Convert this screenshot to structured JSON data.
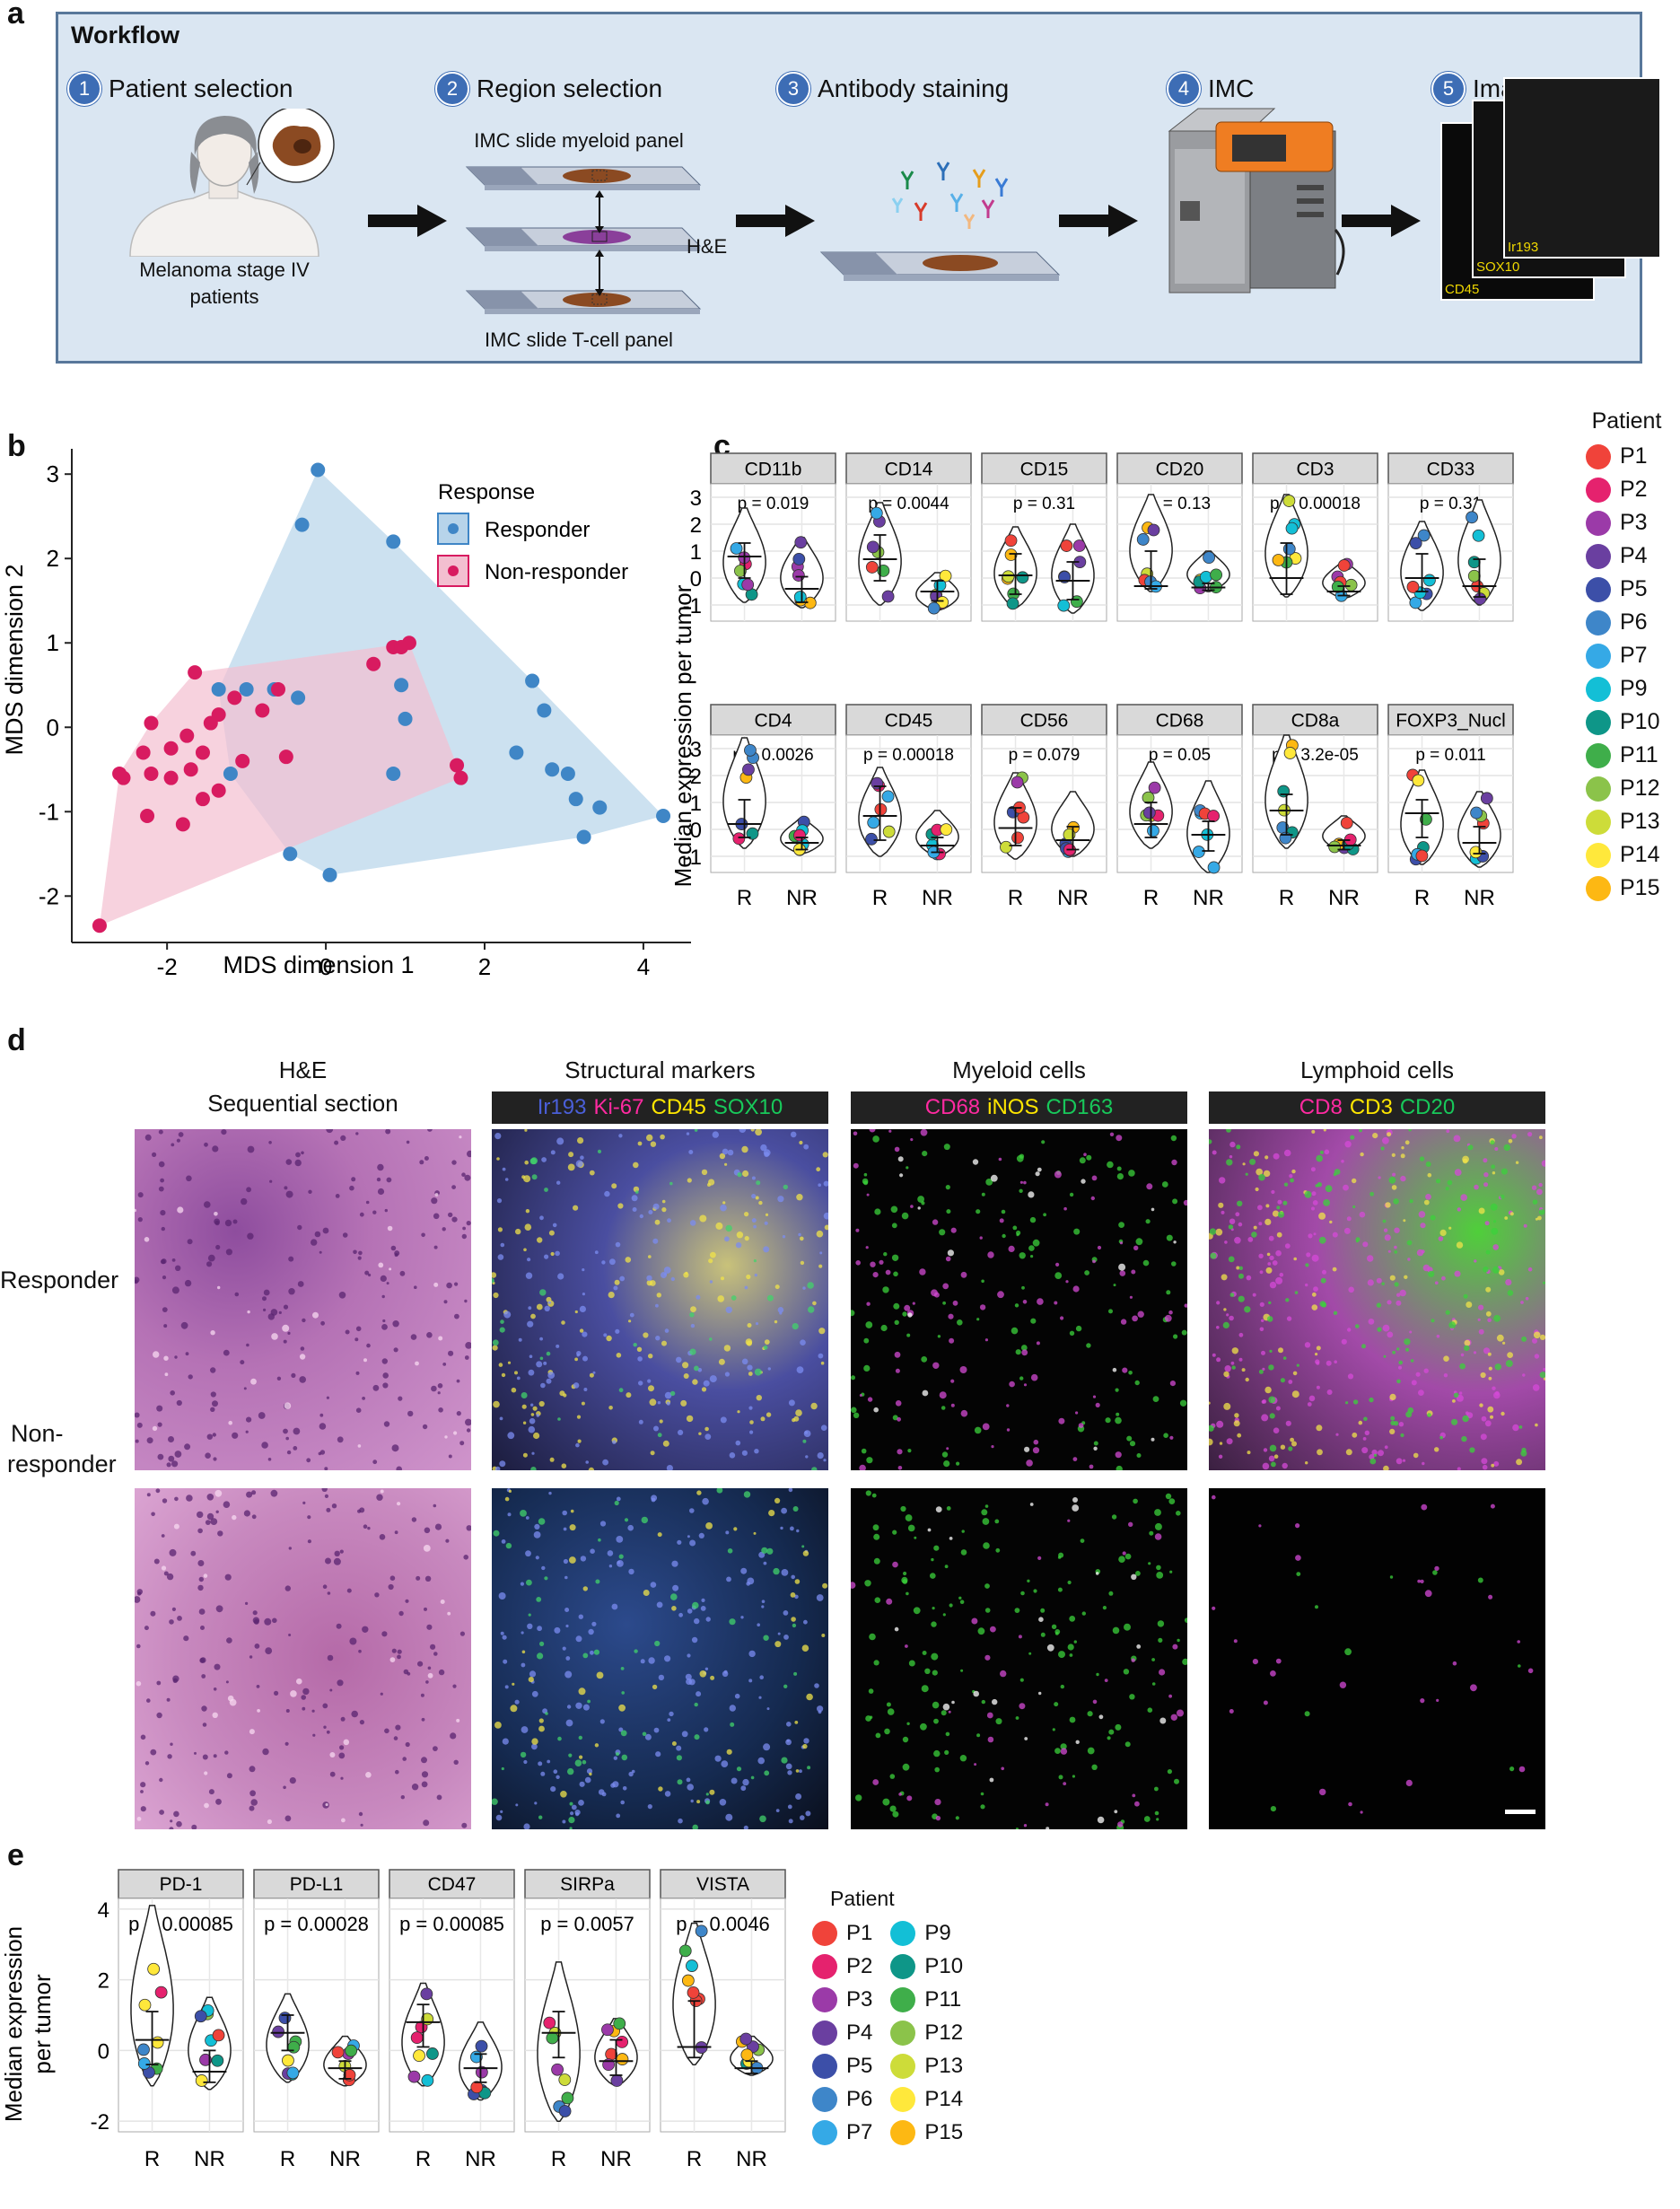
{
  "panel_labels": {
    "a": "a",
    "b": "b",
    "c": "c",
    "d": "d",
    "e": "e"
  },
  "workflow": {
    "title": "Workflow",
    "steps": [
      {
        "num": "1",
        "label": "Patient selection"
      },
      {
        "num": "2",
        "label": "Region selection"
      },
      {
        "num": "3",
        "label": "Antibody staining"
      },
      {
        "num": "4",
        "label": "IMC"
      },
      {
        "num": "5",
        "label": "Image stack"
      }
    ],
    "patient_caption_1": "Melanoma stage IV",
    "patient_caption_2": "patients",
    "slide_top": "IMC slide myeloid panel",
    "slide_mid": "H&E",
    "slide_bottom": "IMC slide T-cell panel",
    "stack_labels": [
      "Ir193",
      "SOX10",
      "CD45"
    ]
  },
  "colors": {
    "responder": "#3f86c6",
    "non_responder": "#d81b60",
    "responder_fill": "#b7d4ea",
    "non_responder_fill": "#f3bfd0",
    "workflow_bg": "#dae6f2",
    "workflow_border": "#58779a",
    "step_badge": "#3d6db5",
    "strip_bg": "#d9d9d9",
    "dark_strip": "#222222"
  },
  "patients": {
    "title": "Patient",
    "items": [
      {
        "label": "P1",
        "color": "#f0433a"
      },
      {
        "label": "P2",
        "color": "#e5226e"
      },
      {
        "label": "P3",
        "color": "#9b3aa8"
      },
      {
        "label": "P4",
        "color": "#6a3fa0"
      },
      {
        "label": "P5",
        "color": "#3c4fa8"
      },
      {
        "label": "P6",
        "color": "#3e86c9"
      },
      {
        "label": "P7",
        "color": "#35a9e6"
      },
      {
        "label": "P9",
        "color": "#13bfd6"
      },
      {
        "label": "P10",
        "color": "#0e9688"
      },
      {
        "label": "P11",
        "color": "#3fae4a"
      },
      {
        "label": "P12",
        "color": "#8bc34a"
      },
      {
        "label": "P13",
        "color": "#cddc39"
      },
      {
        "label": "P14",
        "color": "#ffe83b"
      },
      {
        "label": "P15",
        "color": "#fdb813"
      }
    ]
  },
  "chart_data": [
    {
      "type": "scatter",
      "panel": "b",
      "xlabel": "MDS dimension 1",
      "ylabel": "MDS dimension 2",
      "xlim": [
        -3.2,
        4.6
      ],
      "ylim": [
        -2.55,
        3.3
      ],
      "xticks": [
        "-2",
        "0",
        "2",
        "4"
      ],
      "yticks": [
        "-2",
        "-1",
        "0",
        "1",
        "2",
        "3"
      ],
      "legend_title": "Response",
      "series": [
        {
          "name": "Responder",
          "points": [
            [
              -0.1,
              3.05
            ],
            [
              -0.3,
              2.4
            ],
            [
              0.85,
              2.2
            ],
            [
              -1.35,
              0.45
            ],
            [
              -1.0,
              0.45
            ],
            [
              -0.65,
              0.45
            ],
            [
              -0.35,
              0.35
            ],
            [
              0.95,
              0.5
            ],
            [
              1.0,
              0.1
            ],
            [
              0.85,
              -0.55
            ],
            [
              2.6,
              0.55
            ],
            [
              2.75,
              0.2
            ],
            [
              2.4,
              -0.3
            ],
            [
              2.85,
              -0.5
            ],
            [
              3.05,
              -0.55
            ],
            [
              3.15,
              -0.85
            ],
            [
              3.45,
              -0.95
            ],
            [
              3.25,
              -1.3
            ],
            [
              4.25,
              -1.05
            ],
            [
              -1.2,
              -0.55
            ],
            [
              -0.45,
              -1.5
            ],
            [
              0.05,
              -1.75
            ]
          ]
        },
        {
          "name": "Non-responder",
          "points": [
            [
              -1.65,
              0.65
            ],
            [
              -1.15,
              0.35
            ],
            [
              -0.8,
              0.2
            ],
            [
              -1.35,
              0.15
            ],
            [
              -1.45,
              0.05
            ],
            [
              -0.6,
              0.45
            ],
            [
              0.85,
              0.95
            ],
            [
              1.05,
              1.0
            ],
            [
              0.95,
              0.95
            ],
            [
              0.6,
              0.75
            ],
            [
              -2.2,
              0.05
            ],
            [
              -1.75,
              -0.1
            ],
            [
              -1.95,
              -0.25
            ],
            [
              -1.55,
              -0.3
            ],
            [
              -2.3,
              -0.3
            ],
            [
              -1.05,
              -0.4
            ],
            [
              -0.5,
              -0.35
            ],
            [
              -1.7,
              -0.5
            ],
            [
              -2.6,
              -0.55
            ],
            [
              -2.55,
              -0.6
            ],
            [
              -1.95,
              -0.6
            ],
            [
              -1.35,
              -0.75
            ],
            [
              -1.55,
              -0.85
            ],
            [
              -2.25,
              -1.05
            ],
            [
              -1.8,
              -1.15
            ],
            [
              -2.2,
              -0.55
            ],
            [
              1.65,
              -0.45
            ],
            [
              1.7,
              -0.6
            ],
            [
              -2.85,
              -2.35
            ]
          ]
        }
      ]
    },
    {
      "type": "violin",
      "panel": "c",
      "ylabel": "Median expression per tumor",
      "ylim": [
        -1.6,
        3.5
      ],
      "yticks": [
        "-1",
        "0",
        "1",
        "2",
        "3"
      ],
      "categories": [
        "R",
        "NR"
      ],
      "facets": [
        {
          "name": "CD11b",
          "p": "p = 0.019",
          "R": {
            "lo": -0.9,
            "hi": 2.6,
            "med": 0.8,
            "ebar": [
              0.0,
              1.3
            ]
          },
          "NR": {
            "lo": -1.1,
            "hi": 1.5,
            "med": -0.4,
            "ebar": [
              -0.9,
              0.05
            ]
          }
        },
        {
          "name": "CD14",
          "p": "p = 0.0044",
          "R": {
            "lo": -1.0,
            "hi": 2.8,
            "med": 0.7,
            "ebar": [
              -0.1,
              1.6
            ]
          },
          "NR": {
            "lo": -1.2,
            "hi": 0.2,
            "med": -0.5,
            "ebar": [
              -0.85,
              -0.1
            ]
          }
        },
        {
          "name": "CD15",
          "p": "p = 0.31",
          "R": {
            "lo": -1.1,
            "hi": 1.9,
            "med": 0.1,
            "ebar": [
              -0.6,
              0.9
            ]
          },
          "NR": {
            "lo": -1.3,
            "hi": 2.0,
            "med": -0.1,
            "ebar": [
              -0.8,
              0.6
            ]
          }
        },
        {
          "name": "CD20",
          "p": "p = 0.13",
          "R": {
            "lo": -0.5,
            "hi": 3.1,
            "med": -0.3,
            "ebar": [
              -0.4,
              1.0
            ]
          },
          "NR": {
            "lo": -0.5,
            "hi": 1.0,
            "med": -0.35,
            "ebar": [
              -0.45,
              -0.2
            ]
          }
        },
        {
          "name": "CD3",
          "p": "p = 0.00018",
          "R": {
            "lo": -0.7,
            "hi": 3.1,
            "med": 0.0,
            "ebar": [
              -0.6,
              1.3
            ]
          },
          "NR": {
            "lo": -0.75,
            "hi": 0.6,
            "med": -0.5,
            "ebar": [
              -0.65,
              -0.3
            ]
          }
        },
        {
          "name": "CD33",
          "p": "p = 0.31",
          "R": {
            "lo": -1.2,
            "hi": 2.1,
            "med": 0.0,
            "ebar": [
              -0.5,
              0.9
            ]
          },
          "NR": {
            "lo": -1.0,
            "hi": 2.9,
            "med": -0.3,
            "ebar": [
              -0.7,
              0.7
            ]
          }
        },
        {
          "name": "CD4",
          "p": "p = 0.0026",
          "R": {
            "lo": -0.7,
            "hi": 3.4,
            "med": 0.2,
            "ebar": [
              -0.3,
              1.1
            ]
          },
          "NR": {
            "lo": -0.9,
            "hi": 0.4,
            "med": -0.5,
            "ebar": [
              -0.75,
              -0.3
            ]
          }
        },
        {
          "name": "CD45",
          "p": "p = 0.00018",
          "R": {
            "lo": -1.0,
            "hi": 2.3,
            "med": 0.5,
            "ebar": [
              -0.4,
              1.6
            ]
          },
          "NR": {
            "lo": -1.0,
            "hi": 0.7,
            "med": -0.6,
            "ebar": [
              -0.85,
              -0.3
            ]
          }
        },
        {
          "name": "CD56",
          "p": "p = 0.079",
          "R": {
            "lo": -1.1,
            "hi": 2.1,
            "med": 0.05,
            "ebar": [
              -0.6,
              0.8
            ]
          },
          "NR": {
            "lo": -1.0,
            "hi": 1.4,
            "med": -0.4,
            "ebar": [
              -0.75,
              0.1
            ]
          }
        },
        {
          "name": "CD68",
          "p": "p = 0.05",
          "R": {
            "lo": -0.7,
            "hi": 2.5,
            "med": 0.2,
            "ebar": [
              -0.3,
              1.0
            ]
          },
          "NR": {
            "lo": -1.6,
            "hi": 1.8,
            "med": -0.2,
            "ebar": [
              -0.8,
              0.3
            ]
          }
        },
        {
          "name": "CD8a",
          "p": "p = 3.2e-05",
          "R": {
            "lo": -0.7,
            "hi": 3.5,
            "med": 0.7,
            "ebar": [
              -0.2,
              1.3
            ]
          },
          "NR": {
            "lo": -0.8,
            "hi": 0.5,
            "med": -0.6,
            "ebar": [
              -0.75,
              -0.4
            ]
          }
        },
        {
          "name": "FOXP3_Nucl",
          "p": "p = 0.011",
          "R": {
            "lo": -1.3,
            "hi": 2.2,
            "med": 0.6,
            "ebar": [
              -0.3,
              1.1
            ]
          },
          "NR": {
            "lo": -1.4,
            "hi": 1.4,
            "med": -0.5,
            "ebar": [
              -0.9,
              0.1
            ]
          }
        }
      ]
    },
    {
      "type": "violin",
      "panel": "e",
      "ylabel_1": "Median expression",
      "ylabel_2": "per tumor",
      "ylim": [
        -2.3,
        4.3
      ],
      "yticks": [
        "-2",
        "0",
        "2",
        "4"
      ],
      "categories": [
        "R",
        "NR"
      ],
      "facets": [
        {
          "name": "PD-1",
          "p": "p = 0.00085",
          "R": {
            "lo": -1.0,
            "hi": 4.1,
            "med": 0.3,
            "ebar": [
              -0.4,
              1.1
            ]
          },
          "NR": {
            "lo": -1.1,
            "hi": 1.5,
            "med": -0.6,
            "ebar": [
              -0.9,
              0.0
            ]
          }
        },
        {
          "name": "PD-L1",
          "p": "p = 0.00028",
          "R": {
            "lo": -0.9,
            "hi": 1.6,
            "med": 0.5,
            "ebar": [
              0.0,
              1.0
            ]
          },
          "NR": {
            "lo": -1.0,
            "hi": 0.4,
            "med": -0.5,
            "ebar": [
              -0.8,
              -0.3
            ]
          }
        },
        {
          "name": "CD47",
          "p": "p = 0.00085",
          "R": {
            "lo": -1.0,
            "hi": 1.9,
            "med": 0.8,
            "ebar": [
              0.1,
              1.3
            ]
          },
          "NR": {
            "lo": -1.4,
            "hi": 0.8,
            "med": -0.5,
            "ebar": [
              -0.9,
              -0.1
            ]
          }
        },
        {
          "name": "SIRPa",
          "p": "p = 0.0057",
          "R": {
            "lo": -2.0,
            "hi": 2.5,
            "med": 0.5,
            "ebar": [
              -0.2,
              1.1
            ]
          },
          "NR": {
            "lo": -1.0,
            "hi": 0.9,
            "med": -0.3,
            "ebar": [
              -0.7,
              0.3
            ]
          }
        },
        {
          "name": "VISTA",
          "p": "p = 0.0046",
          "R": {
            "lo": -0.4,
            "hi": 3.6,
            "med": 0.1,
            "ebar": [
              -0.2,
              1.4
            ]
          },
          "NR": {
            "lo": -0.7,
            "hi": 0.4,
            "med": -0.5,
            "ebar": [
              -0.65,
              -0.3
            ]
          }
        }
      ]
    }
  ],
  "panel_d": {
    "columns": [
      {
        "title_1": "H&E",
        "title_2": "Sequential section",
        "markers": []
      },
      {
        "title_1": "Structural markers",
        "markers": [
          {
            "text": "Ir193",
            "color": "#4a5fd8"
          },
          {
            "text": "Ki-67",
            "color": "#ff2aa1"
          },
          {
            "text": "CD45",
            "color": "#ffe600"
          },
          {
            "text": "SOX10",
            "color": "#18c85a"
          }
        ]
      },
      {
        "title_1": "Myeloid cells",
        "markers": [
          {
            "text": "CD68",
            "color": "#ff2aa1"
          },
          {
            "text": "iNOS",
            "color": "#ffe600"
          },
          {
            "text": "CD163",
            "color": "#18c85a"
          }
        ]
      },
      {
        "title_1": "Lymphoid cells",
        "markers": [
          {
            "text": "CD8",
            "color": "#ff2aa1"
          },
          {
            "text": "CD3",
            "color": "#ffe600"
          },
          {
            "text": "CD20",
            "color": "#18c85a"
          }
        ]
      }
    ],
    "rows": [
      {
        "label_1": "Responder",
        "label_2": ""
      },
      {
        "label_1": "Non-",
        "label_2": "responder"
      }
    ]
  }
}
